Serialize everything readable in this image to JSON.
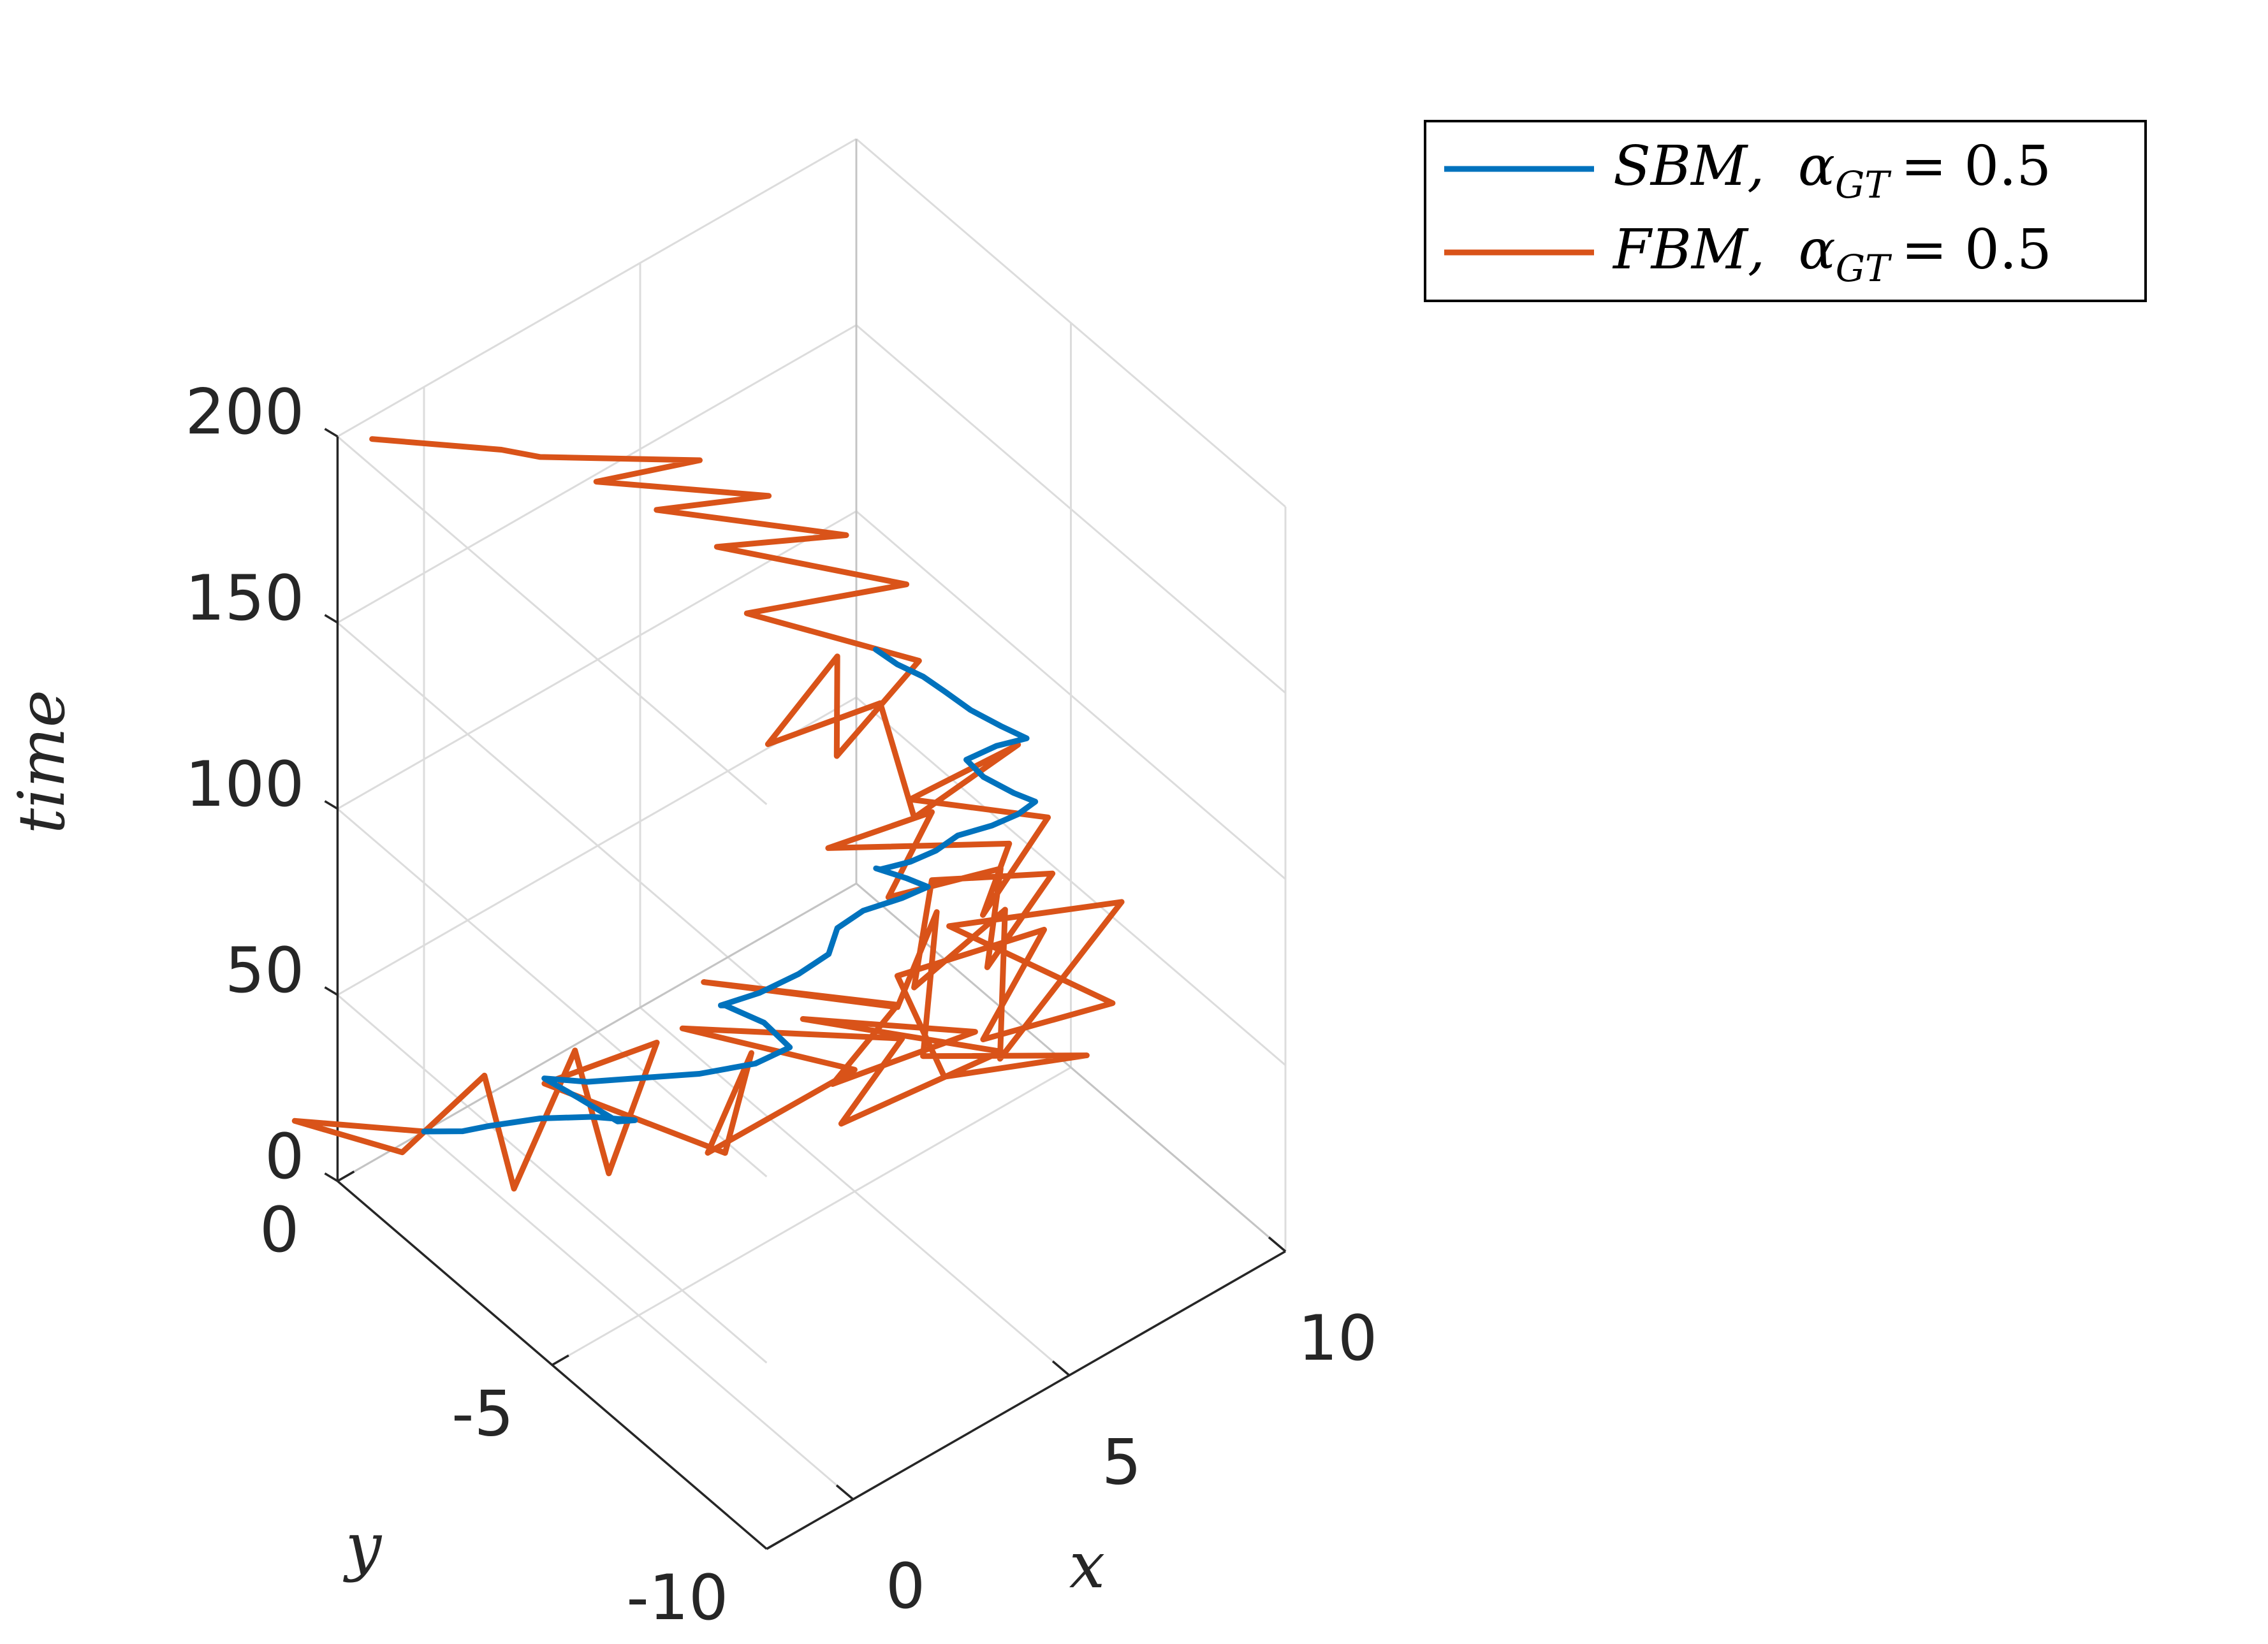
{
  "chart_data": {
    "type": "line3d",
    "view": "3d",
    "axes": {
      "x": {
        "label": "x",
        "lim": [
          -2,
          10
        ],
        "ticks": [
          0,
          5,
          10
        ],
        "tick_labels": [
          "0",
          "5",
          "10"
        ]
      },
      "y": {
        "label": "y",
        "lim": [
          -10,
          0
        ],
        "ticks": [
          0,
          -5,
          -10
        ],
        "tick_labels": [
          "0",
          "-5",
          "-10"
        ]
      },
      "z": {
        "label": "time",
        "lim": [
          0,
          200
        ],
        "ticks": [
          0,
          50,
          100,
          150,
          200
        ],
        "tick_labels": [
          "0",
          "50",
          "100",
          "150",
          "200"
        ]
      }
    },
    "grid": true,
    "box": false,
    "legend": {
      "placement": "top-right",
      "entries": [
        {
          "name": "SBM,",
          "alpha_symbol": "α",
          "subscript": "GT",
          "equals": "= 0.5",
          "color": "#0072BD"
        },
        {
          "name": "FBM,",
          "alpha_symbol": "α",
          "subscript": "GT",
          "equals": "= 0.5",
          "color": "#D95319"
        }
      ]
    },
    "series": [
      {
        "name": "SBM, α_GT = 0.5",
        "color": "#0072BD",
        "points": [
          [
            0,
            0,
            0
          ],
          [
            0.3,
            -0.6,
            4
          ],
          [
            0.5,
            -1.0,
            8
          ],
          [
            1.1,
            -1.6,
            12
          ],
          [
            1.6,
            -2.3,
            16
          ],
          [
            1.9,
            -3.0,
            20
          ],
          [
            1.4,
            -3.1,
            24
          ],
          [
            1.0,
            -2.6,
            28
          ],
          [
            0.6,
            -2.2,
            32
          ],
          [
            0.9,
            -2.9,
            36
          ],
          [
            1.5,
            -3.6,
            40
          ],
          [
            2.1,
            -4.3,
            44
          ],
          [
            2.8,
            -4.9,
            48
          ],
          [
            3.3,
            -5.2,
            52
          ],
          [
            3.1,
            -4.8,
            56
          ],
          [
            2.6,
            -4.4,
            60
          ],
          [
            2.3,
            -4.6,
            64
          ],
          [
            2.8,
            -5.0,
            68
          ],
          [
            3.4,
            -5.3,
            72
          ],
          [
            3.9,
            -5.5,
            76
          ],
          [
            4.2,
            -5.4,
            80
          ],
          [
            4.6,
            -5.6,
            84
          ],
          [
            5.1,
            -6.0,
            88
          ],
          [
            5.4,
            -6.3,
            92
          ],
          [
            5.0,
            -6.2,
            96
          ],
          [
            4.5,
            -6.0,
            100
          ],
          [
            4.3,
            -6.3,
            104
          ],
          [
            4.6,
            -6.7,
            108
          ],
          [
            4.9,
            -7.0,
            112
          ],
          [
            5.2,
            -7.2,
            116
          ],
          [
            5.6,
            -7.6,
            120
          ],
          [
            5.9,
            -7.9,
            124
          ],
          [
            6.1,
            -8.1,
            128
          ],
          [
            5.7,
            -8.0,
            132
          ],
          [
            5.3,
            -7.7,
            136
          ],
          [
            5.1,
            -7.5,
            140
          ],
          [
            5.5,
            -7.8,
            144
          ],
          [
            5.8,
            -8.2,
            148
          ],
          [
            5.4,
            -8.0,
            152
          ],
          [
            5.0,
            -7.7,
            156
          ],
          [
            4.7,
            -7.4,
            160
          ],
          [
            4.4,
            -7.2,
            164
          ],
          [
            4.0,
            -7.0,
            168
          ],
          [
            3.7,
            -6.8,
            172
          ]
        ]
      },
      {
        "name": "FBM, α_GT = 0.5",
        "color": "#D95319",
        "points": [
          [
            0,
            0,
            0
          ],
          [
            -1.8,
            1.2,
            3
          ],
          [
            -1.0,
            -0.5,
            6
          ],
          [
            1.2,
            -0.2,
            9
          ],
          [
            -0.4,
            -2.5,
            12
          ],
          [
            2.5,
            -1.0,
            15
          ],
          [
            0.8,
            -3.5,
            18
          ],
          [
            3.4,
            -2.0,
            21
          ],
          [
            1.0,
            -1.8,
            24
          ],
          [
            2.2,
            -4.8,
            27
          ],
          [
            4.0,
            -3.6,
            30
          ],
          [
            1.6,
            -5.0,
            33
          ],
          [
            4.8,
            -5.2,
            36
          ],
          [
            2.9,
            -3.1,
            39
          ],
          [
            5.6,
            -5.5,
            42
          ],
          [
            3.2,
            -6.5,
            45
          ],
          [
            6.4,
            -7.0,
            48
          ],
          [
            4.0,
            -4.8,
            51
          ],
          [
            6.0,
            -6.8,
            54
          ],
          [
            3.0,
            -6.5,
            57
          ],
          [
            5.0,
            -6.0,
            60
          ],
          [
            2.5,
            -4.0,
            63
          ],
          [
            4.6,
            -6.4,
            66
          ],
          [
            6.5,
            -5.4,
            69
          ],
          [
            3.8,
            -7.8,
            72
          ],
          [
            5.9,
            -9.5,
            75
          ],
          [
            3.4,
            -8.7,
            78
          ],
          [
            4.2,
            -6.8,
            81
          ],
          [
            6.8,
            -7.6,
            84
          ],
          [
            4.0,
            -9.0,
            87
          ],
          [
            6.2,
            -9.8,
            90
          ],
          [
            5.0,
            -7.2,
            93
          ],
          [
            7.6,
            -8.6,
            96
          ],
          [
            3.2,
            -10.2,
            99
          ],
          [
            5.5,
            -8.0,
            102
          ],
          [
            2.8,
            -8.6,
            105
          ],
          [
            4.6,
            -7.2,
            108
          ],
          [
            6.2,
            -8.4,
            111
          ],
          [
            3.6,
            -9.5,
            114
          ],
          [
            5.2,
            -8.2,
            117
          ],
          [
            3.0,
            -7.8,
            120
          ],
          [
            4.8,
            -7.0,
            123
          ],
          [
            2.6,
            -6.8,
            126
          ],
          [
            5.0,
            -8.6,
            129
          ],
          [
            3.3,
            -9.7,
            132
          ],
          [
            5.6,
            -8.9,
            135
          ],
          [
            3.8,
            -7.5,
            138
          ],
          [
            6.0,
            -7.8,
            141
          ],
          [
            3.2,
            -8.2,
            144
          ],
          [
            4.4,
            -6.2,
            147
          ],
          [
            2.0,
            -6.0,
            150
          ],
          [
            4.2,
            -5.4,
            153
          ],
          [
            2.4,
            -7.2,
            156
          ],
          [
            4.9,
            -6.6,
            159
          ],
          [
            3.1,
            -4.4,
            162
          ],
          [
            5.6,
            -5.6,
            165
          ],
          [
            3.4,
            -3.4,
            168
          ],
          [
            5.2,
            -4.6,
            171
          ],
          [
            2.8,
            -2.6,
            174
          ],
          [
            4.4,
            -3.6,
            177
          ],
          [
            2.0,
            -2.0,
            181
          ],
          [
            3.6,
            -2.8,
            184
          ],
          [
            1.2,
            -1.5,
            188
          ],
          [
            0.6,
            -1.2,
            191
          ],
          [
            -1.2,
            0.0,
            194
          ]
        ]
      }
    ]
  }
}
